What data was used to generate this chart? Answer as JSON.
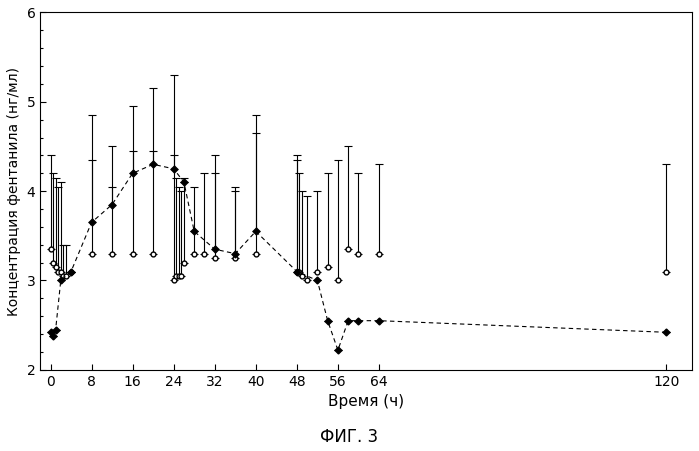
{
  "title": "ФИГ. 3",
  "xlabel": "Время (ч)",
  "ylabel": "Концентрация фентанила (нг/мл)",
  "ylim": [
    2.0,
    6.0
  ],
  "yticks": [
    2,
    3,
    4,
    5,
    6
  ],
  "xticks": [
    0,
    8,
    16,
    24,
    32,
    40,
    48,
    56,
    64,
    120
  ],
  "solid_x": [
    0,
    0.5,
    1,
    1.5,
    2,
    2.5,
    3,
    4,
    8,
    12,
    16,
    20,
    24,
    24.5,
    25,
    25.5,
    26,
    28,
    30,
    32,
    36,
    40,
    48,
    48.5,
    49,
    50,
    52,
    54,
    56,
    58,
    60,
    64,
    120
  ],
  "solid_y": [
    3.35,
    3.2,
    3.15,
    3.1,
    3.1,
    3.05,
    3.05,
    3.1,
    3.3,
    3.3,
    3.3,
    3.3,
    3.0,
    3.05,
    3.05,
    3.05,
    3.2,
    3.3,
    3.3,
    3.25,
    3.25,
    3.3,
    3.1,
    3.1,
    3.05,
    3.0,
    3.1,
    3.15,
    3.0,
    3.35,
    3.3,
    3.3,
    3.1
  ],
  "solid_yerr_lo": [
    0.0,
    0.0,
    0.0,
    0.0,
    0.0,
    0.0,
    0.0,
    0.0,
    0.0,
    0.0,
    0.0,
    0.0,
    0.0,
    0.0,
    0.0,
    0.0,
    0.0,
    0.0,
    0.0,
    0.0,
    0.0,
    0.0,
    0.0,
    0.0,
    0.0,
    0.0,
    0.0,
    0.0,
    0.0,
    0.0,
    0.0,
    0.0,
    0.0
  ],
  "solid_yerr_hi": [
    1.05,
    1.0,
    1.0,
    0.95,
    1.0,
    0.35,
    0.35,
    0.0,
    1.55,
    0.75,
    1.15,
    1.15,
    1.4,
    1.1,
    1.0,
    0.95,
    0.95,
    0.75,
    0.9,
    1.15,
    0.75,
    1.55,
    1.25,
    1.1,
    0.95,
    0.95,
    0.9,
    1.05,
    1.35,
    1.15,
    0.9,
    1.0,
    1.2
  ],
  "dashed_x": [
    0,
    0.5,
    1,
    2,
    4,
    8,
    12,
    16,
    20,
    24,
    26,
    28,
    32,
    36,
    40,
    48,
    52,
    54,
    56,
    58,
    60,
    64,
    120
  ],
  "dashed_y": [
    2.42,
    2.38,
    2.45,
    3.0,
    3.1,
    3.65,
    3.85,
    4.2,
    4.3,
    4.25,
    4.1,
    3.55,
    3.35,
    3.3,
    3.55,
    3.1,
    3.0,
    2.55,
    2.22,
    2.55,
    2.55,
    2.55,
    2.42
  ],
  "dashed_yerr_lo": [
    0.0,
    0.0,
    0.0,
    0.0,
    0.0,
    0.0,
    0.0,
    0.0,
    0.0,
    0.0,
    0.0,
    0.0,
    0.0,
    0.0,
    0.0,
    0.0,
    0.0,
    0.0,
    0.0,
    0.0,
    0.0,
    0.0,
    0.0
  ],
  "dashed_yerr_hi": [
    0.0,
    0.0,
    0.0,
    0.0,
    0.0,
    0.7,
    0.65,
    0.75,
    0.85,
    1.05,
    0.0,
    0.0,
    0.85,
    0.75,
    1.1,
    1.3,
    0.0,
    0.0,
    0.0,
    0.0,
    0.0,
    0.0,
    0.0
  ],
  "background_color": "#ffffff",
  "line_color": "#000000"
}
